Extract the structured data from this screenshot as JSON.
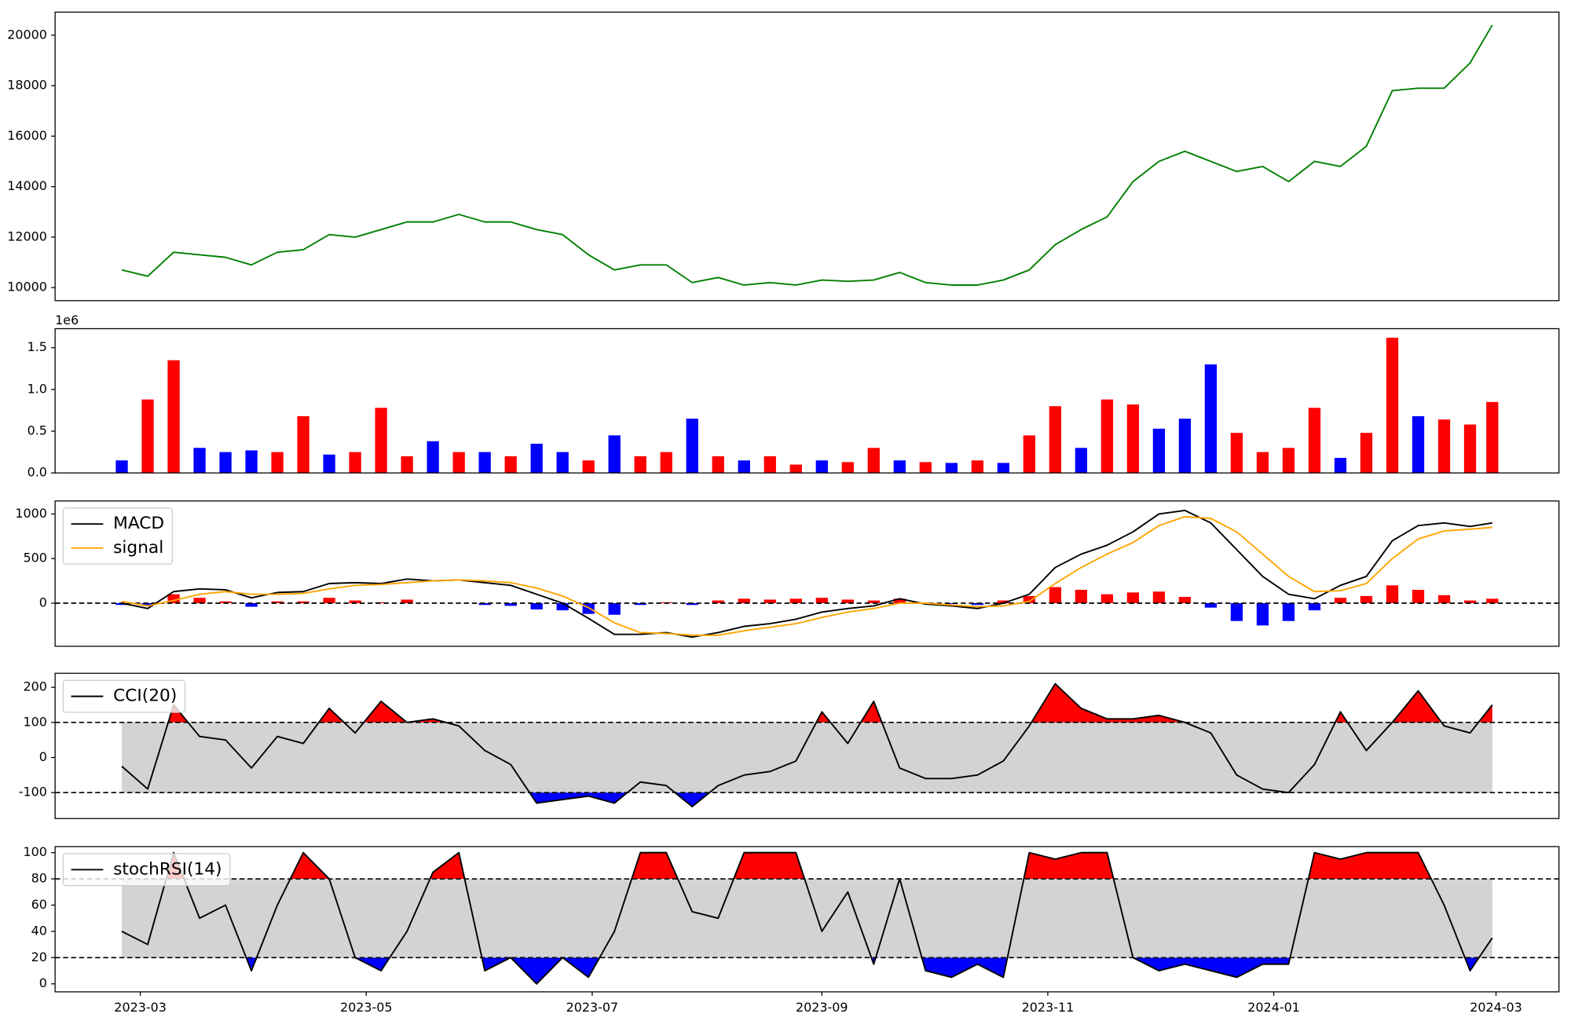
{
  "chart_data": [
    {
      "type": "line",
      "x": [
        "2023-02-24",
        "2023-03-03",
        "2023-03-10",
        "2023-03-17",
        "2023-03-24",
        "2023-03-31",
        "2023-04-07",
        "2023-04-14",
        "2023-04-21",
        "2023-04-28",
        "2023-05-05",
        "2023-05-12",
        "2023-05-19",
        "2023-05-26",
        "2023-06-02",
        "2023-06-09",
        "2023-06-16",
        "2023-06-23",
        "2023-06-30",
        "2023-07-07",
        "2023-07-14",
        "2023-07-21",
        "2023-07-28",
        "2023-08-04",
        "2023-08-11",
        "2023-08-18",
        "2023-08-25",
        "2023-09-01",
        "2023-09-08",
        "2023-09-15",
        "2023-09-22",
        "2023-09-29",
        "2023-10-06",
        "2023-10-13",
        "2023-10-20",
        "2023-10-27",
        "2023-11-03",
        "2023-11-10",
        "2023-11-17",
        "2023-11-24",
        "2023-12-01",
        "2023-12-08",
        "2023-12-15",
        "2023-12-22",
        "2023-12-29",
        "2024-01-05",
        "2024-01-12",
        "2024-01-19",
        "2024-01-26",
        "2024-02-02",
        "2024-02-09",
        "2024-02-16",
        "2024-02-23",
        "2024-02-29"
      ],
      "series": [
        {
          "color": "#008000",
          "values": [
            10700,
            10450,
            11400,
            11300,
            11200,
            10900,
            11400,
            11500,
            12100,
            12000,
            12300,
            12600,
            12600,
            12900,
            12600,
            12600,
            12300,
            12100,
            11300,
            10700,
            10900,
            10900,
            10200,
            10400,
            10100,
            10200,
            10100,
            10300,
            10250,
            10300,
            10600,
            10200,
            10100,
            10100,
            10300,
            10700,
            11700,
            12300,
            12800,
            14200,
            15000,
            15400,
            15000,
            14600,
            14800,
            14200,
            15000,
            14800,
            15600,
            17800,
            17900,
            17900,
            18900,
            20400
          ]
        }
      ],
      "xlim": [
        "2023-02-06",
        "2024-03-18"
      ],
      "ylim": [
        9484,
        20913
      ],
      "yticks": [
        10000,
        12000,
        14000,
        16000,
        18000,
        20000
      ]
    },
    {
      "type": "bar",
      "x": [
        "2023-02-24",
        "2023-03-03",
        "2023-03-10",
        "2023-03-17",
        "2023-03-24",
        "2023-03-31",
        "2023-04-07",
        "2023-04-14",
        "2023-04-21",
        "2023-04-28",
        "2023-05-05",
        "2023-05-12",
        "2023-05-19",
        "2023-05-26",
        "2023-06-02",
        "2023-06-09",
        "2023-06-16",
        "2023-06-23",
        "2023-06-30",
        "2023-07-07",
        "2023-07-14",
        "2023-07-21",
        "2023-07-28",
        "2023-08-04",
        "2023-08-11",
        "2023-08-18",
        "2023-08-25",
        "2023-09-01",
        "2023-09-08",
        "2023-09-15",
        "2023-09-22",
        "2023-09-29",
        "2023-10-06",
        "2023-10-13",
        "2023-10-20",
        "2023-10-27",
        "2023-11-03",
        "2023-11-10",
        "2023-11-17",
        "2023-11-24",
        "2023-12-01",
        "2023-12-08",
        "2023-12-15",
        "2023-12-22",
        "2023-12-29",
        "2024-01-05",
        "2024-01-12",
        "2024-01-19",
        "2024-01-26",
        "2024-02-02",
        "2024-02-09",
        "2024-02-16",
        "2024-02-23",
        "2024-02-29"
      ],
      "values": [
        150000,
        880000,
        1350000,
        300000,
        250000,
        270000,
        250000,
        680000,
        220000,
        250000,
        780000,
        200000,
        380000,
        250000,
        250000,
        200000,
        350000,
        250000,
        150000,
        450000,
        200000,
        250000,
        650000,
        200000,
        150000,
        200000,
        100000,
        150000,
        130000,
        300000,
        150000,
        130000,
        120000,
        150000,
        120000,
        450000,
        800000,
        300000,
        880000,
        820000,
        530000,
        650000,
        1300000,
        480000,
        250000,
        300000,
        780000,
        180000,
        480000,
        1620000,
        680000,
        640000,
        580000,
        850000
      ],
      "colors": [
        "#0000ff",
        "#ff0000",
        "#ff0000",
        "#0000ff",
        "#0000ff",
        "#0000ff",
        "#ff0000",
        "#ff0000",
        "#0000ff",
        "#ff0000",
        "#ff0000",
        "#ff0000",
        "#0000ff",
        "#ff0000",
        "#0000ff",
        "#ff0000",
        "#0000ff",
        "#0000ff",
        "#ff0000",
        "#0000ff",
        "#ff0000",
        "#ff0000",
        "#0000ff",
        "#ff0000",
        "#0000ff",
        "#ff0000",
        "#ff0000",
        "#0000ff",
        "#ff0000",
        "#ff0000",
        "#0000ff",
        "#ff0000",
        "#0000ff",
        "#ff0000",
        "#0000ff",
        "#ff0000",
        "#ff0000",
        "#0000ff",
        "#ff0000",
        "#ff0000",
        "#0000ff",
        "#0000ff",
        "#0000ff",
        "#ff0000",
        "#ff0000",
        "#ff0000",
        "#ff0000",
        "#0000ff",
        "#ff0000",
        "#ff0000",
        "#0000ff",
        "#ff0000",
        "#ff0000",
        "#ff0000"
      ],
      "offset_text": "1e6",
      "xlim": [
        "2023-02-06",
        "2024-03-18"
      ],
      "ylim": [
        0,
        1728000
      ],
      "yticks": [
        {
          "value": 0,
          "label": "0.0"
        },
        {
          "value": 500000,
          "label": "0.5"
        },
        {
          "value": 1000000,
          "label": "1.0"
        },
        {
          "value": 1500000,
          "label": "1.5"
        }
      ]
    },
    {
      "type": "macd",
      "x": [
        "2023-02-24",
        "2023-03-03",
        "2023-03-10",
        "2023-03-17",
        "2023-03-24",
        "2023-03-31",
        "2023-04-07",
        "2023-04-14",
        "2023-04-21",
        "2023-04-28",
        "2023-05-05",
        "2023-05-12",
        "2023-05-19",
        "2023-05-26",
        "2023-06-02",
        "2023-06-09",
        "2023-06-16",
        "2023-06-23",
        "2023-06-30",
        "2023-07-07",
        "2023-07-14",
        "2023-07-21",
        "2023-07-28",
        "2023-08-04",
        "2023-08-11",
        "2023-08-18",
        "2023-08-25",
        "2023-09-01",
        "2023-09-08",
        "2023-09-15",
        "2023-09-22",
        "2023-09-29",
        "2023-10-06",
        "2023-10-13",
        "2023-10-20",
        "2023-10-27",
        "2023-11-03",
        "2023-11-10",
        "2023-11-17",
        "2023-11-24",
        "2023-12-01",
        "2023-12-08",
        "2023-12-15",
        "2023-12-22",
        "2023-12-29",
        "2024-01-05",
        "2024-01-12",
        "2024-01-19",
        "2024-01-26",
        "2024-02-02",
        "2024-02-09",
        "2024-02-16",
        "2024-02-23",
        "2024-02-29"
      ],
      "series": [
        {
          "name": "MACD",
          "color": "#000000",
          "values": [
            0,
            -60,
            130,
            160,
            150,
            60,
            120,
            130,
            220,
            230,
            220,
            270,
            250,
            260,
            230,
            200,
            100,
            0,
            -170,
            -350,
            -350,
            -330,
            -380,
            -330,
            -260,
            -230,
            -180,
            -100,
            -60,
            -30,
            50,
            -10,
            -30,
            -60,
            0,
            100,
            400,
            550,
            650,
            800,
            1000,
            1040,
            900,
            600,
            300,
            100,
            50,
            200,
            300,
            700,
            870,
            900,
            860,
            900
          ]
        },
        {
          "name": "signal",
          "color": "#ffa500",
          "values": [
            20,
            -30,
            30,
            100,
            130,
            100,
            100,
            110,
            160,
            200,
            210,
            230,
            250,
            260,
            250,
            230,
            170,
            80,
            -50,
            -220,
            -330,
            -340,
            -360,
            -360,
            -310,
            -270,
            -230,
            -160,
            -100,
            -60,
            0,
            0,
            -20,
            -40,
            -30,
            20,
            220,
            400,
            550,
            680,
            870,
            970,
            950,
            800,
            550,
            300,
            130,
            140,
            220,
            500,
            720,
            810,
            830,
            850
          ]
        },
        {
          "kind": "bar",
          "up_color": "#ff0000",
          "down_color": "#0000ff",
          "values": [
            -20,
            -30,
            100,
            60,
            20,
            -40,
            20,
            20,
            60,
            30,
            10,
            40,
            0,
            0,
            -20,
            -30,
            -70,
            -80,
            -120,
            -130,
            -20,
            10,
            -20,
            30,
            50,
            40,
            50,
            60,
            40,
            30,
            50,
            -10,
            -10,
            -20,
            30,
            80,
            180,
            150,
            100,
            120,
            130,
            70,
            -50,
            -200,
            -250,
            -200,
            -80,
            60,
            80,
            200,
            150,
            90,
            30,
            50
          ]
        }
      ],
      "hlines": [
        0
      ],
      "legend": "upper left",
      "xlim": [
        "2023-02-06",
        "2024-03-18"
      ],
      "ylim": [
        -483,
        1146
      ],
      "yticks": [
        0,
        500,
        1000
      ]
    },
    {
      "type": "oscillator",
      "x": [
        "2023-02-24",
        "2023-03-03",
        "2023-03-10",
        "2023-03-17",
        "2023-03-24",
        "2023-03-31",
        "2023-04-07",
        "2023-04-14",
        "2023-04-21",
        "2023-04-28",
        "2023-05-05",
        "2023-05-12",
        "2023-05-19",
        "2023-05-26",
        "2023-06-02",
        "2023-06-09",
        "2023-06-16",
        "2023-06-23",
        "2023-06-30",
        "2023-07-07",
        "2023-07-14",
        "2023-07-21",
        "2023-07-28",
        "2023-08-04",
        "2023-08-11",
        "2023-08-18",
        "2023-08-25",
        "2023-09-01",
        "2023-09-08",
        "2023-09-15",
        "2023-09-22",
        "2023-09-29",
        "2023-10-06",
        "2023-10-13",
        "2023-10-20",
        "2023-10-27",
        "2023-11-03",
        "2023-11-10",
        "2023-11-17",
        "2023-11-24",
        "2023-12-01",
        "2023-12-08",
        "2023-12-15",
        "2023-12-22",
        "2023-12-29",
        "2024-01-05",
        "2024-01-12",
        "2024-01-19",
        "2024-01-26",
        "2024-02-02",
        "2024-02-09",
        "2024-02-16",
        "2024-02-23",
        "2024-02-29"
      ],
      "series": [
        {
          "name": "CCI(20)",
          "color": "#000000",
          "values": [
            -25,
            -90,
            150,
            60,
            50,
            -30,
            60,
            40,
            140,
            70,
            160,
            100,
            110,
            90,
            20,
            -20,
            -130,
            -120,
            -110,
            -130,
            -70,
            -80,
            -140,
            -80,
            -50,
            -40,
            -10,
            130,
            40,
            160,
            -30,
            -60,
            -60,
            -50,
            -10,
            90,
            210,
            140,
            110,
            110,
            120,
            100,
            70,
            -50,
            -90,
            -100,
            -20,
            130,
            20,
            100,
            190,
            90,
            70,
            150
          ]
        }
      ],
      "hlines": [
        -100,
        100
      ],
      "band_color": "#d3d3d3",
      "above_color": "#ff0000",
      "below_color": "#0000ff",
      "legend": "upper left",
      "xlim": [
        "2023-02-06",
        "2024-03-18"
      ],
      "ylim": [
        -174,
        240
      ],
      "yticks": [
        -100,
        0,
        100,
        200
      ]
    },
    {
      "type": "oscillator",
      "x": [
        "2023-02-24",
        "2023-03-03",
        "2023-03-10",
        "2023-03-17",
        "2023-03-24",
        "2023-03-31",
        "2023-04-07",
        "2023-04-14",
        "2023-04-21",
        "2023-04-28",
        "2023-05-05",
        "2023-05-12",
        "2023-05-19",
        "2023-05-26",
        "2023-06-02",
        "2023-06-09",
        "2023-06-16",
        "2023-06-23",
        "2023-06-30",
        "2023-07-07",
        "2023-07-14",
        "2023-07-21",
        "2023-07-28",
        "2023-08-04",
        "2023-08-11",
        "2023-08-18",
        "2023-08-25",
        "2023-09-01",
        "2023-09-08",
        "2023-09-15",
        "2023-09-22",
        "2023-09-29",
        "2023-10-06",
        "2023-10-13",
        "2023-10-20",
        "2023-10-27",
        "2023-11-03",
        "2023-11-10",
        "2023-11-17",
        "2023-11-24",
        "2023-12-01",
        "2023-12-08",
        "2023-12-15",
        "2023-12-22",
        "2023-12-29",
        "2024-01-05",
        "2024-01-12",
        "2024-01-19",
        "2024-01-26",
        "2024-02-02",
        "2024-02-09",
        "2024-02-16",
        "2024-02-23",
        "2024-02-29"
      ],
      "series": [
        {
          "name": "stochRSI(14)",
          "color": "#000000",
          "values": [
            40,
            30,
            100,
            50,
            60,
            10,
            60,
            100,
            80,
            20,
            10,
            40,
            85,
            100,
            10,
            20,
            0,
            20,
            5,
            40,
            100,
            100,
            55,
            50,
            100,
            100,
            100,
            40,
            70,
            15,
            80,
            10,
            5,
            15,
            5,
            100,
            95,
            100,
            100,
            20,
            10,
            15,
            10,
            5,
            15,
            15,
            100,
            95,
            100,
            100,
            100,
            60,
            10,
            35
          ]
        }
      ],
      "hlines": [
        20,
        80
      ],
      "band_color": "#d3d3d3",
      "above_color": "#ff0000",
      "below_color": "#0000ff",
      "legend": "upper left",
      "xlim": [
        "2023-02-06",
        "2024-03-18"
      ],
      "ylim": [
        -6.1,
        104.6
      ],
      "yticks": [
        0,
        20,
        40,
        60,
        80,
        100
      ],
      "xticks": [
        {
          "value": "2023-03-01",
          "label": "2023-03"
        },
        {
          "value": "2023-05-01",
          "label": "2023-05"
        },
        {
          "value": "2023-07-01",
          "label": "2023-07"
        },
        {
          "value": "2023-09-01",
          "label": "2023-09"
        },
        {
          "value": "2023-11-01",
          "label": "2023-11"
        },
        {
          "value": "2024-01-01",
          "label": "2024-01"
        },
        {
          "value": "2024-03-01",
          "label": "2024-03"
        }
      ]
    }
  ]
}
